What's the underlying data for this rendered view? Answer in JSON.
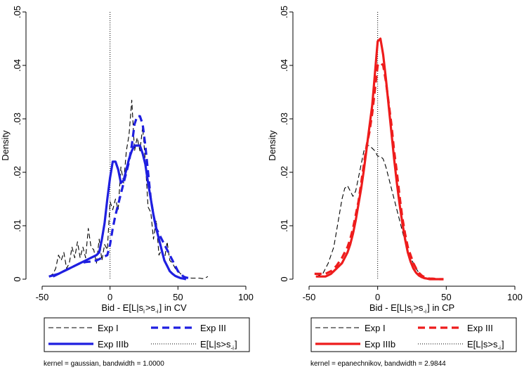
{
  "chart_data": [
    {
      "type": "line",
      "panel": "left",
      "xlabel": "Bid - E[L|s_i>s_-i] in CV",
      "ylabel": "Density",
      "xlim": [
        -50,
        100
      ],
      "ylim": [
        0,
        0.05
      ],
      "xticks": [
        -50,
        0,
        50,
        100
      ],
      "yticks": [
        0,
        0.01,
        0.02,
        0.03,
        0.04,
        0.05
      ],
      "ytick_labels": [
        "0",
        ".01",
        ".02",
        ".03",
        ".04",
        ".05"
      ],
      "vline_x": 0,
      "note": "kernel = gaussian, bandwidth = 1.0000",
      "legend": [
        "Exp I",
        "Exp III",
        "Exp IIIb",
        "E[L|s>s_-i]"
      ],
      "colors": {
        "exp1": "#000000",
        "exp3": "#1f1fe0",
        "exp3b": "#1f1fe0",
        "ref": "#000000"
      },
      "series": [
        {
          "name": "Exp I",
          "style": "dash-thin",
          "x": [
            -45,
            -42,
            -40,
            -38,
            -36,
            -34,
            -32,
            -30,
            -28,
            -26,
            -24,
            -22,
            -20,
            -18,
            -16,
            -14,
            -12,
            -10,
            -8,
            -6,
            -4,
            -2,
            0,
            2,
            4,
            6,
            8,
            10,
            12,
            14,
            16,
            18,
            20,
            22,
            24,
            26,
            28,
            30,
            32,
            34,
            36,
            38,
            40,
            42,
            44,
            46,
            48,
            50,
            52,
            54,
            56,
            58,
            60,
            62,
            64,
            66,
            68,
            70,
            72
          ],
          "y": [
            0.0005,
            0.001,
            0.002,
            0.0045,
            0.0035,
            0.005,
            0.002,
            0.003,
            0.006,
            0.004,
            0.007,
            0.004,
            0.006,
            0.004,
            0.0095,
            0.006,
            0.0055,
            0.003,
            0.0075,
            0.0035,
            0.0065,
            0.0055,
            0.0145,
            0.013,
            0.015,
            0.013,
            0.021,
            0.018,
            0.024,
            0.027,
            0.0335,
            0.024,
            0.0265,
            0.024,
            0.0285,
            0.022,
            0.0135,
            0.0125,
            0.0075,
            0.011,
            0.0045,
            0.0055,
            0.0035,
            0.007,
            0.0035,
            0.003,
            0.002,
            0.0015,
            0.001,
            0.0005,
            0.0004,
            0.0003,
            0.0002,
            0.0002,
            0.0002,
            0.0002,
            0.0001,
            0.0002,
            0.0005
          ]
        },
        {
          "name": "Exp III",
          "style": "dash-thick",
          "x": [
            -42,
            -38,
            -34,
            -30,
            -26,
            -22,
            -18,
            -14,
            -10,
            -6,
            -2,
            0,
            2,
            4,
            6,
            8,
            10,
            12,
            14,
            16,
            18,
            20,
            22,
            24,
            26,
            28,
            30,
            32,
            34,
            36,
            38,
            40,
            42,
            44,
            46,
            48,
            50,
            52,
            54,
            56,
            58,
            60
          ],
          "y": [
            0.0005,
            0.001,
            0.0015,
            0.002,
            0.0025,
            0.003,
            0.0032,
            0.0033,
            0.0035,
            0.004,
            0.0045,
            0.0065,
            0.0095,
            0.012,
            0.014,
            0.016,
            0.018,
            0.02,
            0.022,
            0.025,
            0.029,
            0.0305,
            0.0305,
            0.029,
            0.025,
            0.02,
            0.015,
            0.012,
            0.0095,
            0.0085,
            0.0075,
            0.0065,
            0.0055,
            0.0045,
            0.0035,
            0.0025,
            0.0015,
            0.001,
            0.0005,
            0.0003,
            0.0002,
            0.0001
          ]
        },
        {
          "name": "Exp IIIb",
          "style": "solid-thick",
          "x": [
            -45,
            -42,
            -38,
            -34,
            -30,
            -26,
            -22,
            -18,
            -14,
            -10,
            -8,
            -6,
            -4,
            -2,
            0,
            2,
            4,
            6,
            8,
            10,
            12,
            14,
            16,
            18,
            20,
            22,
            24,
            26,
            28,
            30,
            32,
            34,
            36,
            38,
            40,
            42,
            44,
            46,
            48,
            50,
            52,
            54,
            56
          ],
          "y": [
            0.0005,
            0.0007,
            0.001,
            0.0015,
            0.002,
            0.0025,
            0.003,
            0.0035,
            0.004,
            0.0045,
            0.005,
            0.0075,
            0.0105,
            0.015,
            0.019,
            0.022,
            0.022,
            0.0205,
            0.018,
            0.0185,
            0.0205,
            0.0225,
            0.024,
            0.025,
            0.025,
            0.025,
            0.0235,
            0.0215,
            0.018,
            0.015,
            0.012,
            0.0095,
            0.0075,
            0.0055,
            0.0035,
            0.0025,
            0.0015,
            0.001,
            0.0006,
            0.0004,
            0.0002,
            0.0001,
            0
          ]
        }
      ]
    },
    {
      "type": "line",
      "panel": "right",
      "xlabel": "Bid - E[L|s_i>s_-i] in CP",
      "ylabel": "Density",
      "xlim": [
        -50,
        100
      ],
      "ylim": [
        0,
        0.05
      ],
      "xticks": [
        -50,
        0,
        50,
        100
      ],
      "yticks": [
        0,
        0.01,
        0.02,
        0.03,
        0.04,
        0.05
      ],
      "ytick_labels": [
        "0",
        ".01",
        ".02",
        ".03",
        ".04",
        ".05"
      ],
      "vline_x": 0,
      "note": "kernel = epanechnikov, bandwidth = 2.9844",
      "legend": [
        "Exp I",
        "Exp III",
        "Exp IIIb",
        "E[L|s>s_-i]"
      ],
      "colors": {
        "exp1": "#000000",
        "exp3": "#ee1c1c",
        "exp3b": "#ee1c1c",
        "ref": "#000000"
      },
      "series": [
        {
          "name": "Exp I",
          "style": "dash-thin",
          "x": [
            -45,
            -40,
            -36,
            -32,
            -30,
            -28,
            -26,
            -24,
            -22,
            -20,
            -18,
            -16,
            -14,
            -12,
            -10,
            -8,
            -6,
            -4,
            -2,
            0,
            2,
            4,
            6,
            8,
            10,
            12,
            14,
            16,
            18,
            20,
            22,
            24,
            26,
            28,
            30,
            32,
            34,
            36,
            38,
            40,
            44,
            48
          ],
          "y": [
            0.0005,
            0.001,
            0.003,
            0.006,
            0.009,
            0.012,
            0.015,
            0.017,
            0.0175,
            0.0165,
            0.0155,
            0.0165,
            0.019,
            0.0215,
            0.024,
            0.025,
            0.025,
            0.0245,
            0.024,
            0.023,
            0.023,
            0.0225,
            0.021,
            0.019,
            0.017,
            0.015,
            0.013,
            0.011,
            0.009,
            0.007,
            0.0055,
            0.004,
            0.003,
            0.002,
            0.0012,
            0.0007,
            0.0004,
            0.0002,
            0.0001,
            0,
            0,
            0
          ]
        },
        {
          "name": "Exp III",
          "style": "dash-thick",
          "x": [
            -46,
            -42,
            -38,
            -34,
            -30,
            -26,
            -22,
            -20,
            -18,
            -16,
            -14,
            -12,
            -10,
            -8,
            -6,
            -4,
            -2,
            0,
            2,
            4,
            6,
            8,
            10,
            12,
            14,
            16,
            18,
            20,
            22,
            24,
            26,
            28,
            30,
            32,
            34,
            36,
            38,
            40,
            44,
            48
          ],
          "y": [
            0.001,
            0.001,
            0.001,
            0.0015,
            0.0025,
            0.004,
            0.006,
            0.0075,
            0.0095,
            0.012,
            0.0145,
            0.018,
            0.0215,
            0.025,
            0.0275,
            0.031,
            0.0355,
            0.04,
            0.0405,
            0.04,
            0.037,
            0.033,
            0.029,
            0.024,
            0.02,
            0.0155,
            0.0115,
            0.0085,
            0.006,
            0.0045,
            0.003,
            0.002,
            0.0012,
            0.0007,
            0.0004,
            0.0002,
            0.0001,
            0.0001,
            0,
            0
          ]
        },
        {
          "name": "Exp IIIb",
          "style": "solid-thick",
          "x": [
            -45,
            -42,
            -38,
            -34,
            -30,
            -26,
            -22,
            -20,
            -18,
            -16,
            -14,
            -12,
            -10,
            -8,
            -6,
            -4,
            -2,
            0,
            2,
            4,
            6,
            8,
            10,
            12,
            14,
            16,
            18,
            20,
            22,
            24,
            26,
            28,
            30,
            32,
            34,
            36,
            38,
            40,
            44,
            48
          ],
          "y": [
            0.0005,
            0.0005,
            0.0005,
            0.001,
            0.002,
            0.003,
            0.005,
            0.0065,
            0.0085,
            0.011,
            0.014,
            0.017,
            0.0205,
            0.0245,
            0.0285,
            0.0325,
            0.0385,
            0.0445,
            0.045,
            0.042,
            0.0375,
            0.0325,
            0.0275,
            0.0225,
            0.018,
            0.014,
            0.0105,
            0.0075,
            0.005,
            0.0033,
            0.002,
            0.0012,
            0.0007,
            0.0004,
            0.0002,
            0.0001,
            0,
            0,
            0,
            0
          ]
        }
      ]
    }
  ]
}
